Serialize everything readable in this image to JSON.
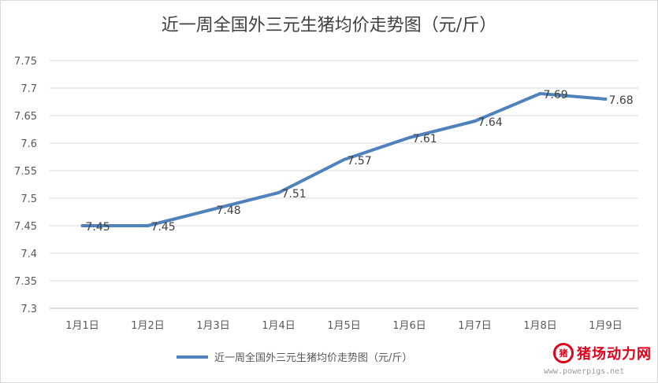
{
  "chart_data": {
    "type": "line",
    "title": "近一周全国外三元生猪均价走势图（元/斤）",
    "categories": [
      "1月1日",
      "1月2日",
      "1月3日",
      "1月4日",
      "1月5日",
      "1月6日",
      "1月7日",
      "1月8日",
      "1月9日"
    ],
    "series": [
      {
        "name": "近一周全国外三元生猪均价走势图（元/斤）",
        "values": [
          7.45,
          7.45,
          7.48,
          7.51,
          7.57,
          7.61,
          7.64,
          7.69,
          7.68
        ],
        "color": "#4f81bd"
      }
    ],
    "yticks": [
      "7.3",
      "7.35",
      "7.4",
      "7.45",
      "7.5",
      "7.55",
      "7.6",
      "7.65",
      "7.7",
      "7.75"
    ],
    "ylim": [
      7.3,
      7.75
    ],
    "grid": true,
    "legend": "bottom",
    "xlabel": "",
    "ylabel": ""
  },
  "watermark": {
    "logo_text": "猪",
    "name": "猪场动力网",
    "url": "www.powerpigs.net"
  }
}
